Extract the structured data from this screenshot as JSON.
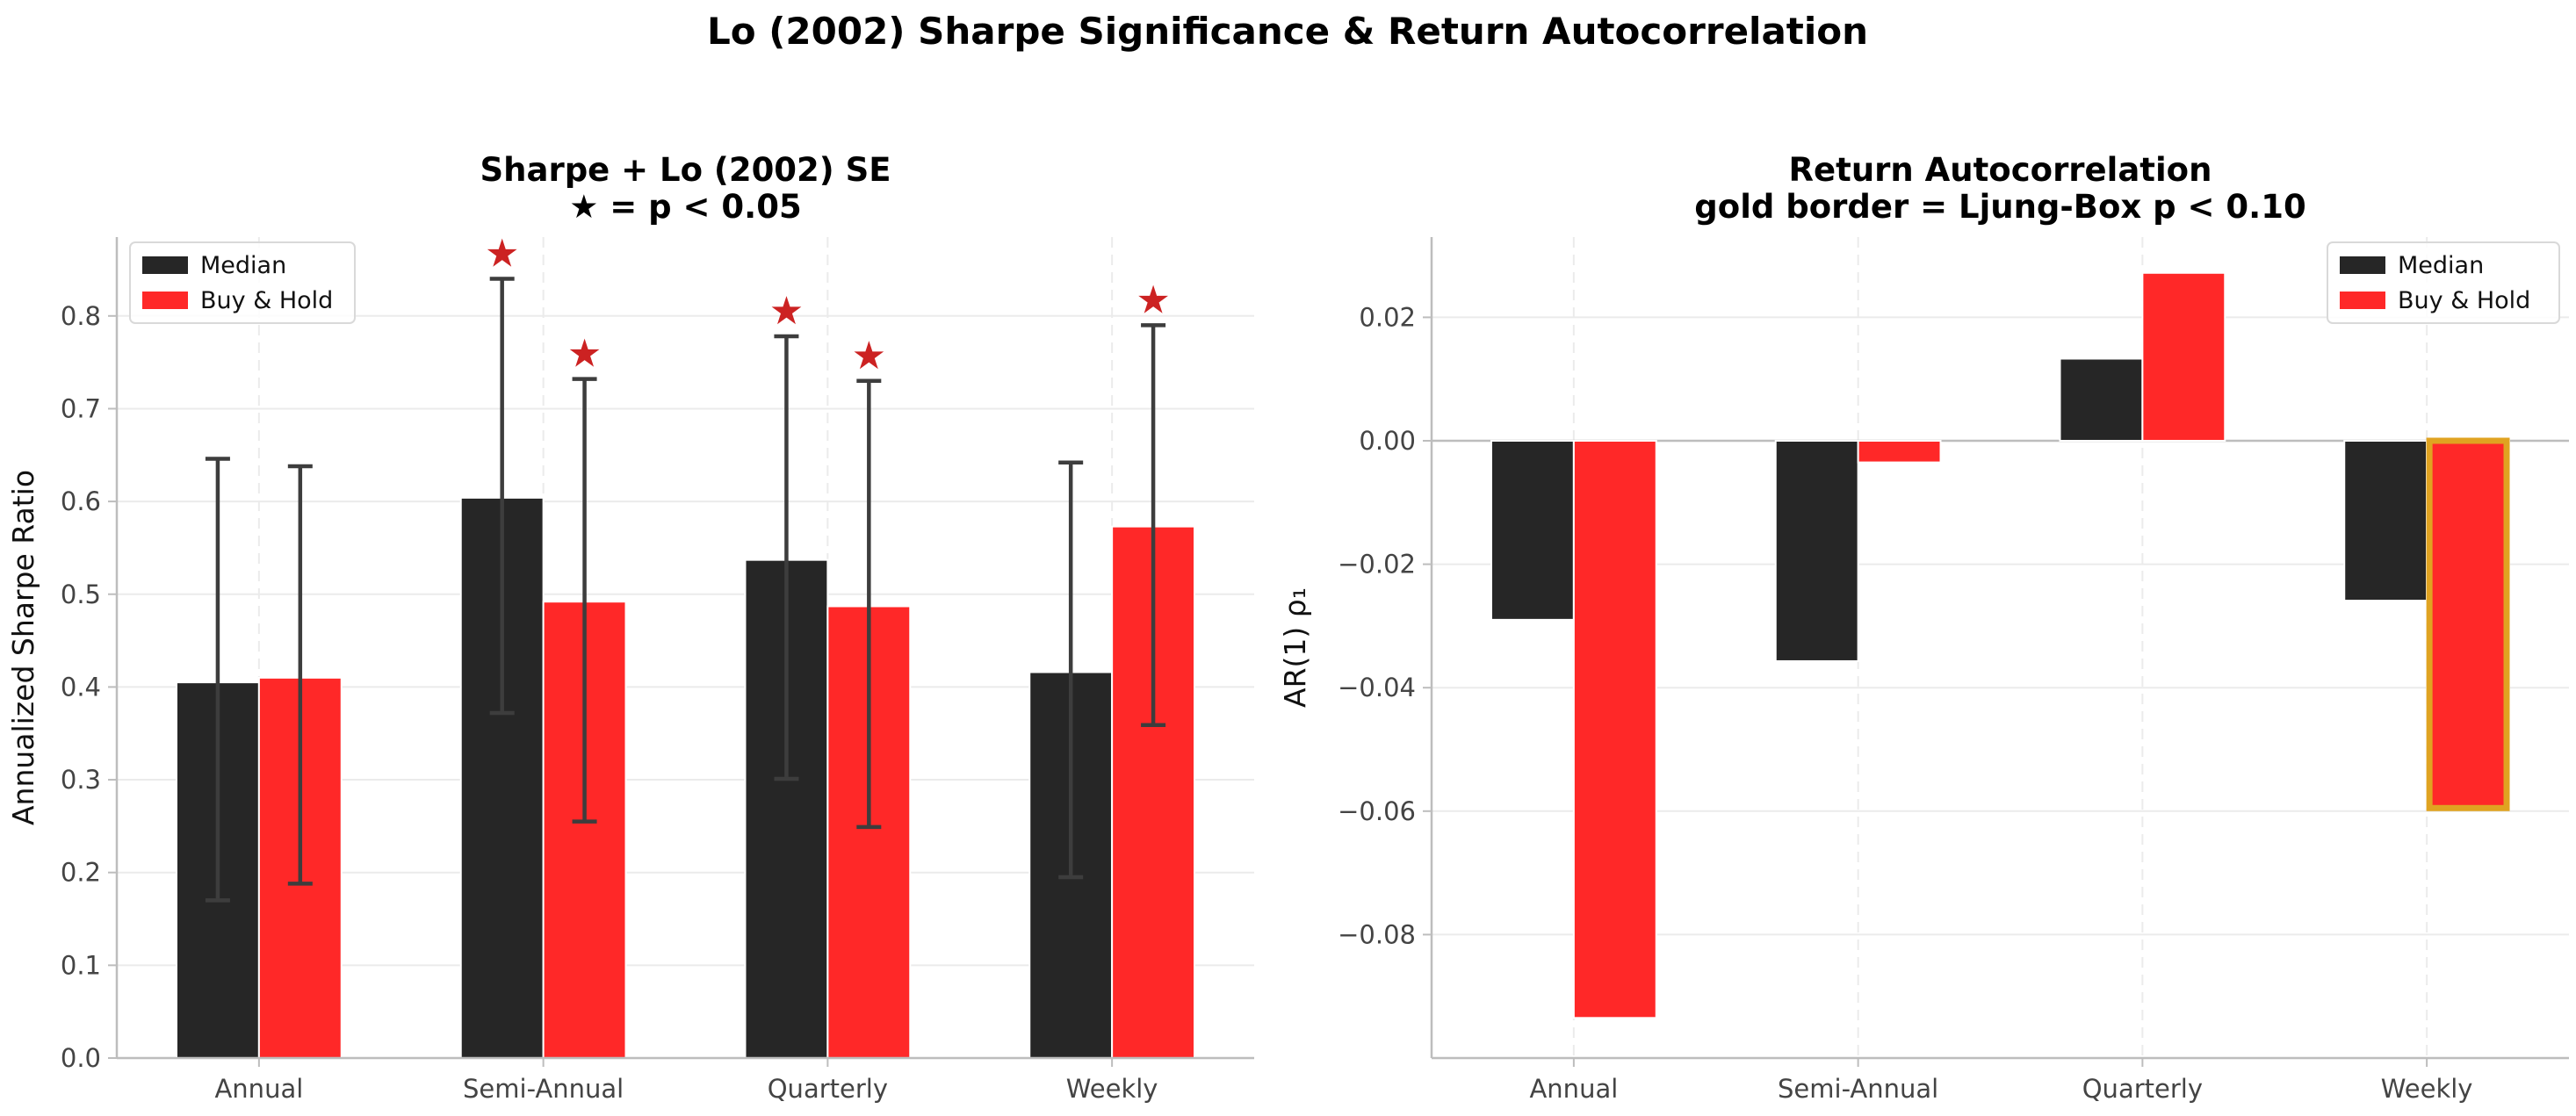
{
  "suptitle": "Lo (2002) Sharpe Significance & Return Autocorrelation",
  "colors": {
    "median": "#262626",
    "buy_hold": "#ff2828",
    "error_bar": "#3d3d3d",
    "star": "#cc2222",
    "gold_border": "#e0a321",
    "grid": "#ebebeb",
    "axis": "#bdbdbd"
  },
  "chart_data": [
    {
      "type": "bar",
      "title": "Sharpe + Lo (2002) SE",
      "subtitle": "★ = p < 0.05",
      "xlabel": "",
      "ylabel": "Annualized Sharpe Ratio",
      "categories": [
        "Annual",
        "Semi-Annual",
        "Quarterly",
        "Weekly"
      ],
      "ylim": [
        0,
        0.885
      ],
      "yticks": [
        0.0,
        0.1,
        0.2,
        0.3,
        0.4,
        0.5,
        0.6,
        0.7,
        0.8
      ],
      "ytick_labels": [
        "0.0",
        "0.1",
        "0.2",
        "0.3",
        "0.4",
        "0.5",
        "0.6",
        "0.7",
        "0.8"
      ],
      "grid": true,
      "legend": "top-left",
      "series": [
        {
          "name": "Median",
          "values": [
            0.405,
            0.604,
            0.537,
            0.416
          ],
          "err_low": [
            0.17,
            0.372,
            0.301,
            0.195
          ],
          "err_high": [
            0.646,
            0.84,
            0.778,
            0.642
          ],
          "significant": [
            false,
            true,
            true,
            false
          ]
        },
        {
          "name": "Buy & Hold",
          "values": [
            0.41,
            0.492,
            0.487,
            0.573
          ],
          "err_low": [
            0.188,
            0.255,
            0.249,
            0.359
          ],
          "err_high": [
            0.638,
            0.732,
            0.73,
            0.79
          ],
          "significant": [
            false,
            true,
            true,
            true
          ]
        }
      ],
      "marker_text": "★"
    },
    {
      "type": "bar",
      "title": "Return Autocorrelation",
      "subtitle": "gold border = Ljung-Box p < 0.10",
      "xlabel": "",
      "ylabel": "AR(1) ρ₁",
      "categories": [
        "Annual",
        "Semi-Annual",
        "Quarterly",
        "Weekly"
      ],
      "ylim": [
        -0.1,
        0.033
      ],
      "yticks": [
        -0.08,
        -0.06,
        -0.04,
        -0.02,
        0.0,
        0.02
      ],
      "ytick_labels": [
        "−0.08",
        "−0.06",
        "−0.04",
        "−0.02",
        "0.00",
        "0.02"
      ],
      "grid": true,
      "legend": "top-right",
      "series": [
        {
          "name": "Median",
          "values": [
            -0.029,
            -0.0357,
            0.0133,
            -0.0259
          ],
          "ljung_box_significant": [
            false,
            false,
            false,
            false
          ]
        },
        {
          "name": "Buy & Hold",
          "values": [
            -0.0935,
            -0.0035,
            0.0272,
            -0.0595
          ],
          "ljung_box_significant": [
            false,
            false,
            false,
            true
          ]
        }
      ]
    }
  ]
}
